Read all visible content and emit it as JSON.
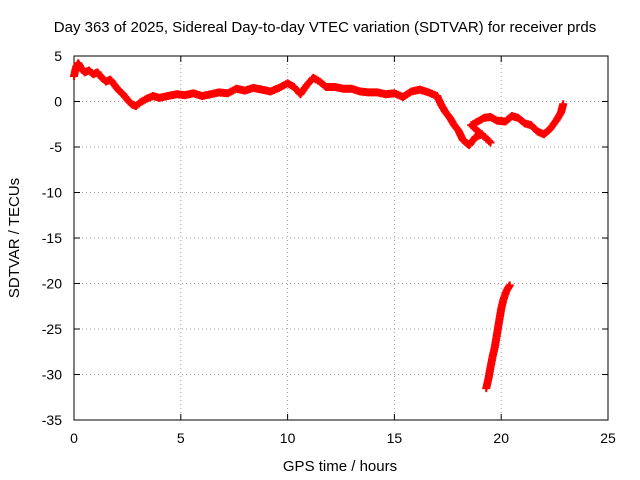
{
  "chart_data": {
    "type": "scatter",
    "title": "Day 363 of 2025, Sidereal Day-to-day VTEC variation (SDTVAR) for receiver prds",
    "xlabel": "GPS time / hours",
    "ylabel": "SDTVAR / TECUs",
    "xlim": [
      0,
      25
    ],
    "ylim": [
      -35,
      5
    ],
    "xticks": [
      0,
      5,
      10,
      15,
      20,
      25
    ],
    "yticks": [
      5,
      0,
      -5,
      -10,
      -15,
      -20,
      -25,
      -30,
      -35
    ],
    "grid": true,
    "series": [
      {
        "name": "SDTVAR prds",
        "color": "#ff0000",
        "marker": "plus",
        "points": [
          [
            0.0,
            2.8
          ],
          [
            0.1,
            3.8
          ],
          [
            0.2,
            4.2
          ],
          [
            0.35,
            3.6
          ],
          [
            0.5,
            3.2
          ],
          [
            0.7,
            3.4
          ],
          [
            0.9,
            3.0
          ],
          [
            1.1,
            3.2
          ],
          [
            1.3,
            2.6
          ],
          [
            1.5,
            2.2
          ],
          [
            1.7,
            2.4
          ],
          [
            1.9,
            1.8
          ],
          [
            2.1,
            1.2
          ],
          [
            2.3,
            0.8
          ],
          [
            2.5,
            0.2
          ],
          [
            2.7,
            -0.3
          ],
          [
            2.9,
            -0.5
          ],
          [
            3.1,
            -0.1
          ],
          [
            3.4,
            0.3
          ],
          [
            3.7,
            0.6
          ],
          [
            4.0,
            0.4
          ],
          [
            4.4,
            0.6
          ],
          [
            4.8,
            0.8
          ],
          [
            5.2,
            0.7
          ],
          [
            5.6,
            0.9
          ],
          [
            6.0,
            0.6
          ],
          [
            6.4,
            0.8
          ],
          [
            6.8,
            1.0
          ],
          [
            7.2,
            0.9
          ],
          [
            7.6,
            1.4
          ],
          [
            8.0,
            1.2
          ],
          [
            8.4,
            1.5
          ],
          [
            8.8,
            1.3
          ],
          [
            9.2,
            1.1
          ],
          [
            9.6,
            1.5
          ],
          [
            10.0,
            2.0
          ],
          [
            10.3,
            1.6
          ],
          [
            10.6,
            0.8
          ],
          [
            10.9,
            1.8
          ],
          [
            11.2,
            2.6
          ],
          [
            11.5,
            2.2
          ],
          [
            11.8,
            1.6
          ],
          [
            12.2,
            1.6
          ],
          [
            12.6,
            1.4
          ],
          [
            13.0,
            1.4
          ],
          [
            13.4,
            1.1
          ],
          [
            13.8,
            1.0
          ],
          [
            14.2,
            1.0
          ],
          [
            14.6,
            0.8
          ],
          [
            15.0,
            0.9
          ],
          [
            15.4,
            0.5
          ],
          [
            15.8,
            1.1
          ],
          [
            16.2,
            1.3
          ],
          [
            16.6,
            1.0
          ],
          [
            17.0,
            0.6
          ],
          [
            17.2,
            -0.4
          ],
          [
            17.4,
            -1.2
          ],
          [
            17.6,
            -1.8
          ],
          [
            17.8,
            -2.6
          ],
          [
            18.0,
            -3.2
          ],
          [
            18.2,
            -4.2
          ],
          [
            18.5,
            -4.8
          ],
          [
            18.8,
            -3.9
          ],
          [
            19.1,
            -3.6
          ],
          [
            19.5,
            -4.5
          ],
          [
            18.6,
            -2.6
          ],
          [
            18.9,
            -2.2
          ],
          [
            19.2,
            -1.8
          ],
          [
            19.5,
            -1.7
          ],
          [
            19.8,
            -2.1
          ],
          [
            20.2,
            -2.2
          ],
          [
            20.5,
            -1.6
          ],
          [
            20.8,
            -1.8
          ],
          [
            21.1,
            -2.4
          ],
          [
            21.4,
            -2.6
          ],
          [
            21.7,
            -3.3
          ],
          [
            22.0,
            -3.6
          ],
          [
            22.3,
            -3.0
          ],
          [
            22.6,
            -2.0
          ],
          [
            22.8,
            -1.2
          ],
          [
            22.9,
            -0.3
          ],
          [
            19.3,
            -31.5
          ],
          [
            19.4,
            -30.5
          ],
          [
            19.5,
            -29.2
          ],
          [
            19.6,
            -28.0
          ],
          [
            19.7,
            -27.0
          ],
          [
            19.8,
            -25.6
          ],
          [
            19.9,
            -24.2
          ],
          [
            20.0,
            -22.8
          ],
          [
            20.1,
            -21.8
          ],
          [
            20.25,
            -20.8
          ],
          [
            20.4,
            -20.2
          ]
        ]
      }
    ]
  }
}
